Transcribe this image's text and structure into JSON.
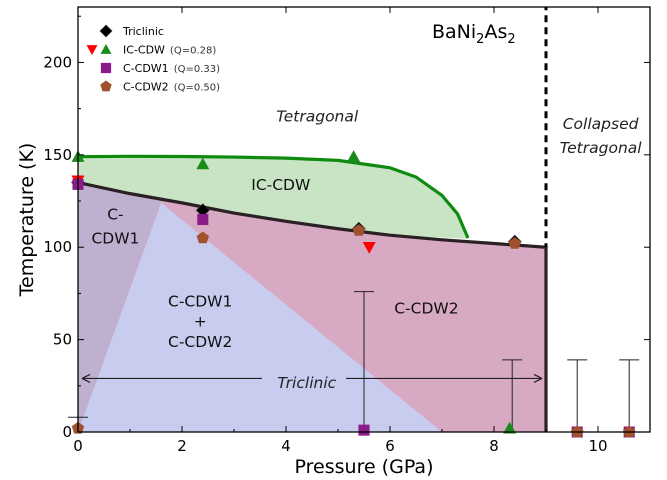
{
  "chart_data": {
    "type": "scatter",
    "title": "",
    "compound": {
      "base": "BaNi",
      "sub1": "2",
      "mid": "As",
      "sub2": "2"
    },
    "xlabel": "Pressure (GPa)",
    "ylabel": "Temperature (K)",
    "xlim": [
      0,
      11
    ],
    "ylim": [
      0,
      230
    ],
    "xticks": [
      0,
      2,
      4,
      6,
      8,
      10
    ],
    "yticks": [
      0,
      50,
      100,
      150,
      200
    ],
    "legend_position": "top-left",
    "legend": [
      {
        "label": "Triclinic",
        "q": "",
        "markers": [
          "diamond"
        ],
        "colors": [
          "#000000"
        ]
      },
      {
        "label": "IC-CDW",
        "q": "(Q=0.28)",
        "markers": [
          "triangle-down",
          "triangle-up"
        ],
        "colors": [
          "#ff0000",
          "#1a8a1a"
        ]
      },
      {
        "label": "C-CDW1",
        "q": "(Q=0.33)",
        "markers": [
          "square"
        ],
        "colors": [
          "#8b1a8b"
        ]
      },
      {
        "label": "C-CDW2",
        "q": "(Q=0.50)",
        "markers": [
          "pentagon"
        ],
        "colors": [
          "#a0522d"
        ]
      }
    ],
    "region_labels": [
      {
        "text": "Tetragonal",
        "x": 4.6,
        "y": 168,
        "italic": true
      },
      {
        "text": "IC-CDW",
        "x": 3.9,
        "y": 131,
        "italic": false
      },
      {
        "text": "C-",
        "x": 0.72,
        "y": 115,
        "italic": false
      },
      {
        "text": "CDW1",
        "x": 0.72,
        "y": 102,
        "italic": false
      },
      {
        "text": "C-CDW1",
        "x": 2.35,
        "y": 68,
        "italic": false
      },
      {
        "text": "+",
        "x": 2.35,
        "y": 57,
        "italic": false
      },
      {
        "text": "C-CDW2",
        "x": 2.35,
        "y": 46,
        "italic": false
      },
      {
        "text": "C-CDW2",
        "x": 6.7,
        "y": 64,
        "italic": false
      },
      {
        "text": "Collapsed",
        "x": 10.05,
        "y": 164,
        "italic": true
      },
      {
        "text": "Tetragonal",
        "x": 10.05,
        "y": 151,
        "italic": true
      },
      {
        "text": "Triclinic",
        "x": 4.4,
        "y": 27,
        "italic": true
      }
    ],
    "boundaries": {
      "structural": [
        [
          0,
          135
        ],
        [
          1,
          129
        ],
        [
          2,
          124
        ],
        [
          3,
          118.5
        ],
        [
          4,
          114
        ],
        [
          5,
          110
        ],
        [
          6,
          106.5
        ],
        [
          7,
          104
        ],
        [
          8,
          102
        ],
        [
          9,
          100
        ],
        [
          9,
          0
        ]
      ],
      "ic_cdw": [
        [
          0,
          149
        ],
        [
          1,
          149.2
        ],
        [
          2,
          149.1
        ],
        [
          3,
          148.8
        ],
        [
          4,
          148.2
        ],
        [
          5,
          147
        ],
        [
          6,
          143
        ],
        [
          6.5,
          138
        ],
        [
          7,
          128
        ],
        [
          7.3,
          118
        ],
        [
          7.5,
          105
        ]
      ],
      "collapsed": [
        [
          9,
          150
        ],
        [
          9,
          0
        ]
      ]
    },
    "series": [
      {
        "name": "Triclinic",
        "marker": "diamond",
        "color": "#000000",
        "points": [
          [
            0,
            135
          ],
          [
            2.4,
            120
          ],
          [
            5.4,
            110
          ],
          [
            8.4,
            103
          ]
        ]
      },
      {
        "name": "IC-CDW",
        "marker": "triangle-down",
        "color": "#ff0000",
        "points": [
          [
            0,
            136
          ],
          [
            5.6,
            100
          ]
        ]
      },
      {
        "name": "IC-CDW",
        "marker": "triangle-up",
        "color": "#1a8a1a",
        "points": [
          [
            0,
            149
          ],
          [
            2.4,
            145
          ],
          [
            5.3,
            149
          ],
          [
            8.3,
            2
          ]
        ]
      },
      {
        "name": "C-CDW1",
        "marker": "square",
        "color": "#8b1a8b",
        "points": [
          [
            0,
            134
          ],
          [
            2.4,
            115
          ],
          [
            5.5,
            1
          ],
          [
            9.6,
            0
          ],
          [
            10.6,
            0
          ]
        ]
      },
      {
        "name": "C-CDW2",
        "marker": "pentagon",
        "color": "#a0522d",
        "points": [
          [
            0,
            2
          ],
          [
            2.4,
            105
          ],
          [
            5.4,
            109
          ],
          [
            8.4,
            102
          ],
          [
            9.6,
            0
          ],
          [
            10.6,
            0
          ]
        ]
      }
    ],
    "error_bars": [
      {
        "x": 0,
        "y0": 2,
        "y1": 8
      },
      {
        "x": 5.5,
        "y0": 1,
        "y1": 76
      },
      {
        "x": 8.35,
        "y0": 2,
        "y1": 39
      },
      {
        "x": 9.6,
        "y0": 0,
        "y1": 39
      },
      {
        "x": 10.6,
        "y0": 0,
        "y1": 39
      }
    ],
    "triclinic_arrow": {
      "x0": 0,
      "x1": 9,
      "y": 29
    }
  }
}
